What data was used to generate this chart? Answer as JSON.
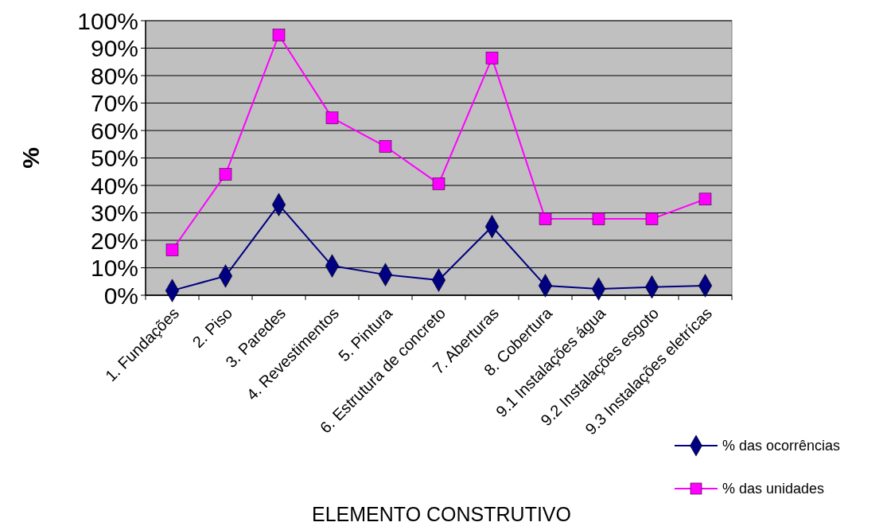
{
  "chart_data": {
    "type": "line",
    "xlabel": "ELEMENTO CONSTRUTIVO",
    "ylabel": "%",
    "categories": [
      "1. Fundações",
      "2. Piso",
      "3. Paredes",
      "4. Revestimentos",
      "5. Pintura",
      "6. Estrutura de concreto",
      "7. Aberturas",
      "8. Cobertura",
      "9.1 Instalações água",
      "9.2 Instalações esgoto",
      "9.3 Instalações eletrícas"
    ],
    "series": [
      {
        "name": "% das ocorrências",
        "color": "#000080",
        "marker": "diamond",
        "values": [
          1.7,
          7,
          33,
          10.7,
          7.5,
          5.5,
          25,
          3.5,
          2.3,
          3,
          3.5
        ]
      },
      {
        "name": "% das unidades",
        "color": "#ff00ff",
        "marker": "square",
        "values": [
          16.5,
          44,
          94.8,
          64.6,
          54.2,
          40.6,
          86.4,
          27.8,
          27.8,
          27.8,
          35
        ]
      }
    ],
    "ylim": [
      0,
      100
    ],
    "yticks": [
      {
        "value": 0,
        "label": "0%"
      },
      {
        "value": 10,
        "label": "10%"
      },
      {
        "value": 20,
        "label": "20%"
      },
      {
        "value": 30,
        "label": "30%"
      },
      {
        "value": 40,
        "label": "40%"
      },
      {
        "value": 50,
        "label": "50%"
      },
      {
        "value": 60,
        "label": "60%"
      },
      {
        "value": 70,
        "label": "70%"
      },
      {
        "value": 80,
        "label": "80%"
      },
      {
        "value": 90,
        "label": "90%"
      },
      {
        "value": 100,
        "label": "100%"
      }
    ],
    "grid": "y",
    "legend": "bottom right"
  }
}
